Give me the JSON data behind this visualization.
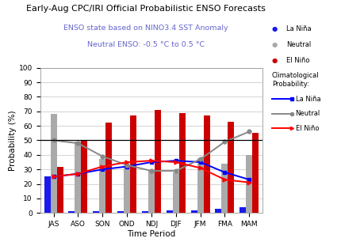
{
  "title": "Early-Aug CPC/IRI Official Probabilistic ENSO Forecasts",
  "subtitle1": "ENSO state based on NINO3.4 SST Anomaly",
  "subtitle2": "Neutral ENSO: -0.5 °C to 0.5 °C",
  "xlabel": "Time Period",
  "ylabel": "Probability (%)",
  "categories": [
    "JAS",
    "ASO",
    "SON",
    "OND",
    "NDJ",
    "DJF",
    "JFM",
    "FMA",
    "MAM"
  ],
  "bar_lanina": [
    25,
    1,
    1,
    1,
    1,
    2,
    2,
    3,
    4
  ],
  "bar_neutral": [
    68,
    49,
    37,
    33,
    29,
    28,
    38,
    34,
    40
  ],
  "bar_elnino": [
    32,
    50,
    62,
    67,
    71,
    69,
    67,
    63,
    55
  ],
  "line_lanina": [
    25,
    27,
    30,
    32,
    35,
    36,
    35,
    28,
    23
  ],
  "line_neutral": [
    50,
    48,
    39,
    33,
    29,
    29,
    37,
    49,
    56
  ],
  "line_elnino": [
    25,
    27,
    32,
    35,
    36,
    35,
    31,
    23,
    21
  ],
  "bar_color_lanina": "#1a1aee",
  "bar_color_neutral": "#aaaaaa",
  "bar_color_elnino": "#cc0000",
  "line_color_lanina": "#0000ff",
  "line_color_neutral": "#888888",
  "line_color_elnino": "#ff0000",
  "title_color": "#000000",
  "subtitle_color": "#6666cc",
  "ylim": [
    0,
    100
  ],
  "yticks": [
    0,
    10,
    20,
    30,
    40,
    50,
    60,
    70,
    80,
    90,
    100
  ],
  "hline_y": 50,
  "background_color": "#ffffff",
  "legend1_labels": [
    "La Niña",
    "Neutral",
    "El Niño"
  ],
  "legend2_title": "Climatological\nProbability:",
  "legend2_labels": [
    "La Niña",
    "Neutral",
    "El Niño"
  ]
}
